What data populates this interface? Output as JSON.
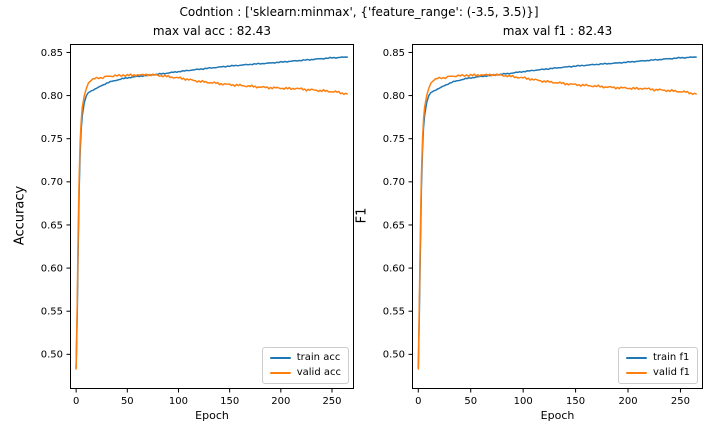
{
  "figure": {
    "suptitle": "Codntion : ['sklearn:minmax', {'feature_range': (-3.5, 3.5)}]",
    "background": "#ffffff"
  },
  "colors": {
    "train": "#1f77b4",
    "valid": "#ff7f0e",
    "frame": "#000000",
    "text": "#000000",
    "legend_border": "#cccccc"
  },
  "chart_data": [
    {
      "type": "line",
      "title": "max val acc : 82.43",
      "xlabel": "Epoch",
      "ylabel": "Accuracy",
      "xlim": [
        -6,
        271.5
      ],
      "ylim": [
        0.4598,
        0.8598
      ],
      "xticks": [
        0,
        50,
        100,
        150,
        200,
        250
      ],
      "yticks": [
        0.5,
        0.55,
        0.6,
        0.65,
        0.7,
        0.75,
        0.8,
        0.85
      ],
      "grid": false,
      "legend_position": "lower right",
      "max_val_metric": 82.43,
      "series": [
        {
          "name": "train acc",
          "color_key": "train",
          "points": [
            [
              0,
              0.484
            ],
            [
              1,
              0.545
            ],
            [
              2,
              0.625
            ],
            [
              3,
              0.693
            ],
            [
              4,
              0.737
            ],
            [
              5,
              0.763
            ],
            [
              6,
              0.777
            ],
            [
              8,
              0.792
            ],
            [
              10,
              0.8
            ],
            [
              12,
              0.8035
            ],
            [
              15,
              0.8055
            ],
            [
              20,
              0.8085
            ],
            [
              25,
              0.8115
            ],
            [
              30,
              0.8145
            ],
            [
              35,
              0.8165
            ],
            [
              40,
              0.818
            ],
            [
              45,
              0.8195
            ],
            [
              50,
              0.8205
            ],
            [
              55,
              0.8215
            ],
            [
              60,
              0.8222
            ],
            [
              65,
              0.8228
            ],
            [
              70,
              0.8235
            ],
            [
              75,
              0.8242
            ],
            [
              80,
              0.8248
            ],
            [
              85,
              0.8255
            ],
            [
              90,
              0.8262
            ],
            [
              95,
              0.827
            ],
            [
              100,
              0.8278
            ],
            [
              110,
              0.8292
            ],
            [
              120,
              0.8305
            ],
            [
              130,
              0.8318
            ],
            [
              140,
              0.833
            ],
            [
              150,
              0.8342
            ],
            [
              160,
              0.8352
            ],
            [
              170,
              0.8362
            ],
            [
              180,
              0.837
            ],
            [
              190,
              0.8378
            ],
            [
              200,
              0.8388
            ],
            [
              210,
              0.8398
            ],
            [
              220,
              0.8408
            ],
            [
              230,
              0.8418
            ],
            [
              240,
              0.8428
            ],
            [
              250,
              0.8438
            ],
            [
              258,
              0.8442
            ],
            [
              265,
              0.8446
            ]
          ]
        },
        {
          "name": "valid acc",
          "color_key": "valid",
          "points": [
            [
              0,
              0.483
            ],
            [
              1,
              0.557
            ],
            [
              2,
              0.645
            ],
            [
              3,
              0.707
            ],
            [
              4,
              0.748
            ],
            [
              5,
              0.772
            ],
            [
              6,
              0.7865
            ],
            [
              8,
              0.8
            ],
            [
              10,
              0.8085
            ],
            [
              12,
              0.8145
            ],
            [
              15,
              0.818
            ],
            [
              18,
              0.8198
            ],
            [
              22,
              0.8208
            ],
            [
              26,
              0.8205
            ],
            [
              30,
              0.8222
            ],
            [
              34,
              0.8225
            ],
            [
              38,
              0.8232
            ],
            [
              42,
              0.8228
            ],
            [
              46,
              0.8235
            ],
            [
              50,
              0.8238
            ],
            [
              55,
              0.8233
            ],
            [
              60,
              0.8241
            ],
            [
              65,
              0.8237
            ],
            [
              70,
              0.8243
            ],
            [
              75,
              0.8239
            ],
            [
              80,
              0.8235
            ],
            [
              85,
              0.8228
            ],
            [
              90,
              0.822
            ],
            [
              95,
              0.8212
            ],
            [
              100,
              0.8205
            ],
            [
              105,
              0.8196
            ],
            [
              110,
              0.8185
            ],
            [
              115,
              0.8175
            ],
            [
              120,
              0.8165
            ],
            [
              125,
              0.8158
            ],
            [
              130,
              0.8152
            ],
            [
              135,
              0.8146
            ],
            [
              140,
              0.8138
            ],
            [
              145,
              0.8132
            ],
            [
              150,
              0.8127
            ],
            [
              155,
              0.8122
            ],
            [
              160,
              0.8118
            ],
            [
              165,
              0.8112
            ],
            [
              170,
              0.8108
            ],
            [
              175,
              0.8103
            ],
            [
              180,
              0.8099
            ],
            [
              185,
              0.8094
            ],
            [
              190,
              0.8091
            ],
            [
              195,
              0.8089
            ],
            [
              200,
              0.8086
            ],
            [
              205,
              0.8083
            ],
            [
              210,
              0.8079
            ],
            [
              215,
              0.8084
            ],
            [
              220,
              0.8076
            ],
            [
              225,
              0.8069
            ],
            [
              230,
              0.8066
            ],
            [
              235,
              0.806
            ],
            [
              240,
              0.8056
            ],
            [
              245,
              0.8051
            ],
            [
              250,
              0.8046
            ],
            [
              255,
              0.8041
            ],
            [
              260,
              0.8028
            ],
            [
              265,
              0.8019
            ]
          ]
        }
      ]
    },
    {
      "type": "line",
      "title": "max val f1 : 82.43",
      "xlabel": "Epoch",
      "ylabel": "F1",
      "xlim": [
        -6,
        271.5
      ],
      "ylim": [
        0.4598,
        0.8598
      ],
      "xticks": [
        0,
        50,
        100,
        150,
        200,
        250
      ],
      "yticks": [
        0.5,
        0.55,
        0.6,
        0.65,
        0.7,
        0.75,
        0.8,
        0.85
      ],
      "grid": false,
      "legend_position": "lower right",
      "max_val_metric": 82.43,
      "series": [
        {
          "name": "train f1",
          "color_key": "train",
          "points": [
            [
              0,
              0.484
            ],
            [
              1,
              0.545
            ],
            [
              2,
              0.625
            ],
            [
              3,
              0.693
            ],
            [
              4,
              0.737
            ],
            [
              5,
              0.763
            ],
            [
              6,
              0.777
            ],
            [
              8,
              0.792
            ],
            [
              10,
              0.8
            ],
            [
              12,
              0.8035
            ],
            [
              15,
              0.8055
            ],
            [
              20,
              0.8085
            ],
            [
              25,
              0.8115
            ],
            [
              30,
              0.8145
            ],
            [
              35,
              0.8165
            ],
            [
              40,
              0.818
            ],
            [
              45,
              0.8195
            ],
            [
              50,
              0.8205
            ],
            [
              55,
              0.8215
            ],
            [
              60,
              0.8222
            ],
            [
              65,
              0.8228
            ],
            [
              70,
              0.8235
            ],
            [
              75,
              0.8242
            ],
            [
              80,
              0.8248
            ],
            [
              85,
              0.8255
            ],
            [
              90,
              0.8262
            ],
            [
              95,
              0.827
            ],
            [
              100,
              0.8278
            ],
            [
              110,
              0.8292
            ],
            [
              120,
              0.8305
            ],
            [
              130,
              0.8318
            ],
            [
              140,
              0.833
            ],
            [
              150,
              0.8342
            ],
            [
              160,
              0.8352
            ],
            [
              170,
              0.8362
            ],
            [
              180,
              0.837
            ],
            [
              190,
              0.8378
            ],
            [
              200,
              0.8388
            ],
            [
              210,
              0.8398
            ],
            [
              220,
              0.8408
            ],
            [
              230,
              0.8418
            ],
            [
              240,
              0.8428
            ],
            [
              250,
              0.8438
            ],
            [
              258,
              0.8442
            ],
            [
              265,
              0.8446
            ]
          ]
        },
        {
          "name": "valid f1",
          "color_key": "valid",
          "points": [
            [
              0,
              0.483
            ],
            [
              1,
              0.557
            ],
            [
              2,
              0.645
            ],
            [
              3,
              0.707
            ],
            [
              4,
              0.748
            ],
            [
              5,
              0.772
            ],
            [
              6,
              0.7865
            ],
            [
              8,
              0.8
            ],
            [
              10,
              0.8085
            ],
            [
              12,
              0.8145
            ],
            [
              15,
              0.818
            ],
            [
              18,
              0.8198
            ],
            [
              22,
              0.8208
            ],
            [
              26,
              0.8205
            ],
            [
              30,
              0.8222
            ],
            [
              34,
              0.8225
            ],
            [
              38,
              0.8232
            ],
            [
              42,
              0.8228
            ],
            [
              46,
              0.8235
            ],
            [
              50,
              0.8238
            ],
            [
              55,
              0.8233
            ],
            [
              60,
              0.8241
            ],
            [
              65,
              0.8237
            ],
            [
              70,
              0.8243
            ],
            [
              75,
              0.8239
            ],
            [
              80,
              0.8235
            ],
            [
              85,
              0.8228
            ],
            [
              90,
              0.822
            ],
            [
              95,
              0.8212
            ],
            [
              100,
              0.8205
            ],
            [
              105,
              0.8196
            ],
            [
              110,
              0.8185
            ],
            [
              115,
              0.8175
            ],
            [
              120,
              0.8165
            ],
            [
              125,
              0.8158
            ],
            [
              130,
              0.8152
            ],
            [
              135,
              0.8146
            ],
            [
              140,
              0.8138
            ],
            [
              145,
              0.8132
            ],
            [
              150,
              0.8127
            ],
            [
              155,
              0.8122
            ],
            [
              160,
              0.8118
            ],
            [
              165,
              0.8112
            ],
            [
              170,
              0.8108
            ],
            [
              175,
              0.8103
            ],
            [
              180,
              0.8099
            ],
            [
              185,
              0.8094
            ],
            [
              190,
              0.8091
            ],
            [
              195,
              0.8089
            ],
            [
              200,
              0.8086
            ],
            [
              205,
              0.8083
            ],
            [
              210,
              0.8079
            ],
            [
              215,
              0.8084
            ],
            [
              220,
              0.8076
            ],
            [
              225,
              0.8069
            ],
            [
              230,
              0.8066
            ],
            [
              235,
              0.806
            ],
            [
              240,
              0.8056
            ],
            [
              245,
              0.8051
            ],
            [
              250,
              0.8046
            ],
            [
              255,
              0.8041
            ],
            [
              260,
              0.8028
            ],
            [
              265,
              0.8019
            ]
          ]
        }
      ]
    }
  ]
}
